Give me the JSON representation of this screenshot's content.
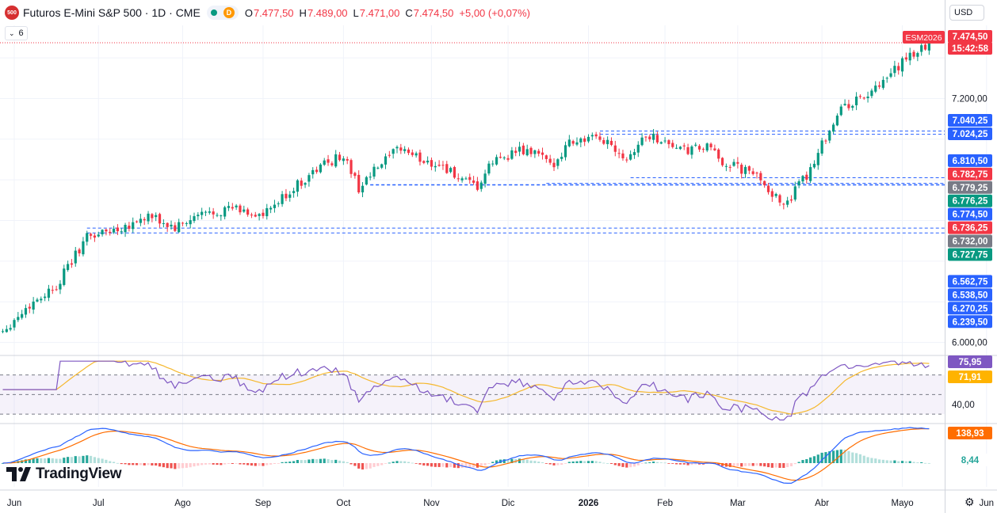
{
  "header": {
    "logo_text": "500",
    "title": "Futuros E-Mini S&P 500 · 1D · CME",
    "badge": "D",
    "open_label": "O",
    "open": "7.477,50",
    "high_label": "H",
    "high": "7.489,00",
    "low_label": "L",
    "low": "7.471,00",
    "close_label": "C",
    "close": "7.474,50",
    "change": "+5,00 (+0,07%)",
    "indicators_toggle": "6"
  },
  "currency": "USD",
  "brand": "TradingView",
  "chart_data": [
    {
      "type": "candlestick",
      "ticker_label": "ESM2026",
      "countdown": "15:42:58",
      "last_price": 7474.5,
      "last_price_label": "7.474,50",
      "y_range": [
        5940,
        7560
      ],
      "y_ticks": [
        {
          "value": 7200,
          "label": "7.200,00"
        },
        {
          "value": 6000,
          "label": "6.000,00"
        }
      ],
      "x_labels": [
        {
          "i": 3,
          "label": "Jun",
          "bold": false
        },
        {
          "i": 25,
          "label": "Jul",
          "bold": false
        },
        {
          "i": 47,
          "label": "Ago",
          "bold": false
        },
        {
          "i": 68,
          "label": "Sep",
          "bold": false
        },
        {
          "i": 89,
          "label": "Oct",
          "bold": false
        },
        {
          "i": 112,
          "label": "Nov",
          "bold": false
        },
        {
          "i": 132,
          "label": "Dic",
          "bold": false
        },
        {
          "i": 153,
          "label": "2026",
          "bold": true
        },
        {
          "i": 173,
          "label": "Feb",
          "bold": false
        },
        {
          "i": 192,
          "label": "Mar",
          "bold": false
        },
        {
          "i": 214,
          "label": "Abr",
          "bold": false
        },
        {
          "i": 235,
          "label": "Mayo",
          "bold": false
        },
        {
          "i": 257,
          "label": "Jun",
          "bold": false
        }
      ],
      "levels": [
        {
          "value": 7040.25,
          "label": "7.040,25",
          "color": "#2962ff",
          "from": 156
        },
        {
          "value": 7024.25,
          "label": "7.024,25",
          "color": "#2962ff",
          "from": 156
        },
        {
          "value": 6810.5,
          "label": "6.810,50",
          "color": "#2962ff",
          "from": 164
        },
        {
          "value": 6782.75,
          "label": "6.782,75",
          "color": "#f23645",
          "from": 142
        },
        {
          "value": 6779.25,
          "label": "6.779,25",
          "color": "#787b86",
          "from": null
        },
        {
          "value": 6776.25,
          "label": "6.776,25",
          "color": "#089981",
          "from": 96
        },
        {
          "value": 6774.5,
          "label": "6.774,50",
          "color": "#2962ff",
          "from": 96
        },
        {
          "value": 6736.25,
          "label": "6.736,25",
          "color": "#f23645",
          "from": null
        },
        {
          "value": 6732.0,
          "label": "6.732,00",
          "color": "#787b86",
          "from": null
        },
        {
          "value": 6727.75,
          "label": "6.727,75",
          "color": "#089981",
          "from": null
        },
        {
          "value": 6562.75,
          "label": "6.562,75",
          "color": "#2962ff",
          "from": 22
        },
        {
          "value": 6538.5,
          "label": "6.538,50",
          "color": "#2962ff",
          "from": 22
        },
        {
          "value": 6270.25,
          "label": "6.270,25",
          "color": "#2962ff",
          "from": null
        },
        {
          "value": 6239.5,
          "label": "6.239,50",
          "color": "#2962ff",
          "from": null
        }
      ],
      "waypoints": [
        [
          0,
          6060
        ],
        [
          8,
          6200
        ],
        [
          14,
          6280
        ],
        [
          22,
          6520
        ],
        [
          30,
          6560
        ],
        [
          38,
          6620
        ],
        [
          45,
          6560
        ],
        [
          52,
          6630
        ],
        [
          60,
          6660
        ],
        [
          68,
          6620
        ],
        [
          76,
          6760
        ],
        [
          84,
          6880
        ],
        [
          89,
          6920
        ],
        [
          93,
          6760
        ],
        [
          98,
          6860
        ],
        [
          104,
          6960
        ],
        [
          109,
          6900
        ],
        [
          115,
          6870
        ],
        [
          120,
          6790
        ],
        [
          124,
          6760
        ],
        [
          128,
          6890
        ],
        [
          134,
          6940
        ],
        [
          140,
          6930
        ],
        [
          143,
          6860
        ],
        [
          148,
          6990
        ],
        [
          153,
          7000
        ],
        [
          158,
          6990
        ],
        [
          163,
          6910
        ],
        [
          168,
          7020
        ],
        [
          173,
          6990
        ],
        [
          178,
          6940
        ],
        [
          184,
          6960
        ],
        [
          188,
          6890
        ],
        [
          193,
          6850
        ],
        [
          198,
          6810
        ],
        [
          203,
          6680
        ],
        [
          206,
          6720
        ],
        [
          210,
          6820
        ],
        [
          214,
          6980
        ],
        [
          219,
          7150
        ],
        [
          224,
          7200
        ],
        [
          229,
          7250
        ],
        [
          234,
          7360
        ],
        [
          238,
          7420
        ],
        [
          242,
          7474
        ]
      ]
    },
    {
      "type": "line",
      "name": "RSI",
      "y_range": [
        22,
        85
      ],
      "levels": [
        70,
        50,
        30
      ],
      "labels": [
        {
          "value": 75.95,
          "label": "75,95",
          "color": "#7e57c2"
        },
        {
          "value": 71.91,
          "label": "71,91",
          "color": "#ffb300"
        },
        {
          "value": 40.0,
          "label": "40,00",
          "color": null
        }
      ],
      "colors": {
        "rsi": "#7e57c2",
        "ma": "#f5b82e",
        "band": "#7e57c2"
      }
    },
    {
      "type": "line",
      "name": "MACD",
      "labels": [
        {
          "value": 138.93,
          "label": "138,93",
          "color": "#ff6d00"
        },
        {
          "value": 8.44,
          "label": "8,44",
          "color": "#26a69a"
        }
      ],
      "colors": {
        "macd": "#2962ff",
        "signal": "#ff6d00",
        "hist_up": "#26a69a",
        "hist_up_weak": "#b2dfdb",
        "hist_dn": "#ef5350",
        "hist_dn_weak": "#ffcdd2"
      }
    }
  ],
  "colors": {
    "up": "#089981",
    "down": "#f23645",
    "grid": "#f0f3fa",
    "axis_text": "#131722"
  }
}
